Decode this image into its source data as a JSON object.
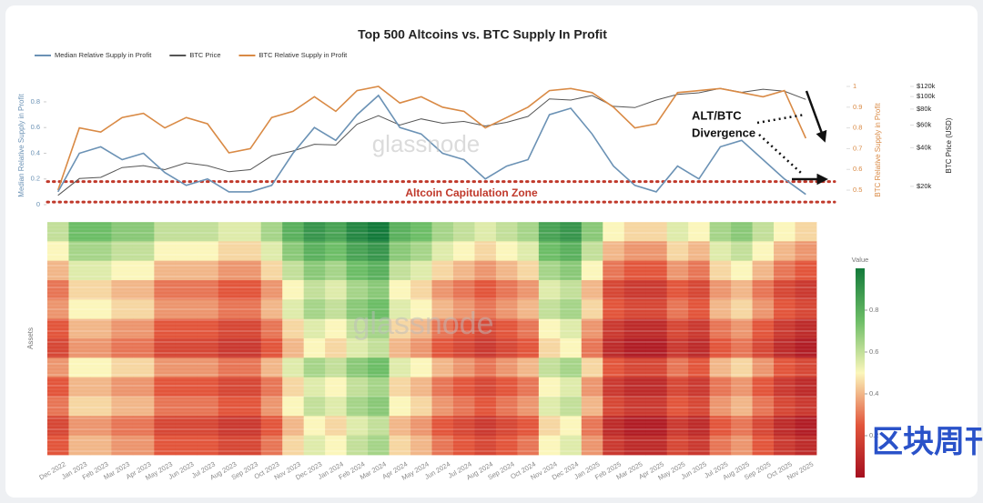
{
  "chart_data": [
    {
      "type": "line",
      "title": "Top 500 Altcoins vs. BTC Supply In Profit",
      "x": [
        "Dec 2022",
        "Jan 2023",
        "Feb 2023",
        "Mar 2023",
        "Apr 2023",
        "May 2023",
        "Jun 2023",
        "Jul 2023",
        "Aug 2023",
        "Sep 2023",
        "Oct 2023",
        "Nov 2023",
        "Dec 2023",
        "Jan 2024",
        "Feb 2024",
        "Mar 2024",
        "Apr 2024",
        "May 2024",
        "Jun 2024",
        "Jul 2024",
        "Aug 2024",
        "Sep 2024",
        "Oct 2024",
        "Nov 2024",
        "Dec 2024",
        "Jan 2025",
        "Feb 2025",
        "Mar 2025",
        "Apr 2025",
        "May 2025",
        "Jun 2025",
        "Jul 2025",
        "Aug 2025",
        "Sep 2025",
        "Oct 2025",
        "Nov 2025"
      ],
      "series": [
        {
          "name": "Median Relative Supply in Profit",
          "color": "#6b92b5",
          "values": [
            0.1,
            0.4,
            0.45,
            0.35,
            0.4,
            0.25,
            0.15,
            0.2,
            0.1,
            0.1,
            0.15,
            0.4,
            0.6,
            0.5,
            0.7,
            0.85,
            0.6,
            0.55,
            0.4,
            0.35,
            0.2,
            0.3,
            0.35,
            0.7,
            0.75,
            0.55,
            0.3,
            0.15,
            0.1,
            0.3,
            0.2,
            0.45,
            0.5,
            0.35,
            0.2,
            0.08
          ]
        },
        {
          "name": "BTC Price",
          "color": "#555555",
          "axis": "y3",
          "values": [
            17000,
            23000,
            23500,
            28000,
            29000,
            27000,
            30500,
            29000,
            26000,
            27000,
            34500,
            37700,
            42500,
            42000,
            61000,
            71000,
            60000,
            67000,
            62000,
            64000,
            59000,
            63000,
            70000,
            96000,
            94000,
            102000,
            84000,
            82000,
            94000,
            104000,
            107000,
            116000,
            108000,
            114000,
            110000,
            95000
          ]
        },
        {
          "name": "BTC Relative Supply in Profit",
          "color": "#d98a45",
          "axis": "y2",
          "values": [
            0.5,
            0.8,
            0.78,
            0.85,
            0.87,
            0.8,
            0.85,
            0.82,
            0.68,
            0.7,
            0.85,
            0.88,
            0.95,
            0.88,
            0.98,
            1.0,
            0.92,
            0.95,
            0.9,
            0.88,
            0.8,
            0.85,
            0.9,
            0.98,
            0.99,
            0.97,
            0.9,
            0.8,
            0.82,
            0.97,
            0.98,
            0.99,
            0.97,
            0.95,
            0.98,
            0.75
          ]
        }
      ],
      "y_label": "Median Relative Supply in Profit",
      "ylim": [
        0,
        0.92
      ],
      "yticks": [
        0,
        0.2,
        0.4,
        0.6,
        0.8
      ],
      "y2_label": "BTC Relative Supply in Profit",
      "y2lim": [
        0.43,
        1.0
      ],
      "y2ticks": [
        0.5,
        0.6,
        0.7,
        0.8,
        0.9,
        1
      ],
      "y3_label": "BTC Price (USD)",
      "y3_log": true,
      "y3lim": [
        14400,
        120000
      ],
      "y3ticks": [
        {
          "value": 20000,
          "label": "$20k"
        },
        {
          "value": 40000,
          "label": "$40k"
        },
        {
          "value": 60000,
          "label": "$60k"
        },
        {
          "value": 80000,
          "label": "$80k"
        },
        {
          "value": 100000,
          "label": "$100k"
        },
        {
          "value": 120000,
          "label": "$120k"
        }
      ],
      "zone": {
        "label": "Altcoin Capitulation Zone",
        "range": [
          0.02,
          0.18
        ],
        "color": "#c0392b"
      },
      "annotation_lines": [
        "ALT/BTC",
        "Divergence"
      ],
      "watermark": "glassnode"
    },
    {
      "type": "heatmap",
      "y_label": "Assets",
      "x": [
        "Dec 2022",
        "Jan 2023",
        "Feb 2023",
        "Mar 2023",
        "Apr 2023",
        "May 2023",
        "Jun 2023",
        "Jul 2023",
        "Aug 2023",
        "Sep 2023",
        "Oct 2023",
        "Nov 2023",
        "Dec 2023",
        "Jan 2024",
        "Feb 2024",
        "Mar 2024",
        "Apr 2024",
        "May 2024",
        "Jun 2024",
        "Jul 2024",
        "Aug 2024",
        "Sep 2024",
        "Oct 2024",
        "Nov 2024",
        "Dec 2024",
        "Jan 2025",
        "Feb 2025",
        "Mar 2025",
        "Apr 2025",
        "May 2025",
        "Jun 2025",
        "Jul 2025",
        "Aug 2025",
        "Sep 2025",
        "Oct 2025",
        "Nov 2025"
      ],
      "z": [
        [
          0.6,
          0.75,
          0.75,
          0.7,
          0.7,
          0.6,
          0.6,
          0.6,
          0.55,
          0.55,
          0.65,
          0.8,
          0.9,
          0.85,
          0.95,
          1.0,
          0.8,
          0.75,
          0.65,
          0.6,
          0.55,
          0.6,
          0.65,
          0.85,
          0.9,
          0.7,
          0.5,
          0.45,
          0.45,
          0.55,
          0.5,
          0.65,
          0.7,
          0.6,
          0.5,
          0.45
        ],
        [
          0.5,
          0.65,
          0.65,
          0.6,
          0.6,
          0.5,
          0.5,
          0.5,
          0.45,
          0.45,
          0.55,
          0.7,
          0.8,
          0.75,
          0.85,
          0.9,
          0.7,
          0.65,
          0.55,
          0.5,
          0.45,
          0.5,
          0.55,
          0.75,
          0.8,
          0.6,
          0.4,
          0.35,
          0.35,
          0.45,
          0.4,
          0.55,
          0.6,
          0.5,
          0.4,
          0.35
        ],
        [
          0.4,
          0.55,
          0.55,
          0.5,
          0.5,
          0.4,
          0.4,
          0.4,
          0.35,
          0.35,
          0.45,
          0.6,
          0.7,
          0.65,
          0.75,
          0.8,
          0.6,
          0.55,
          0.45,
          0.4,
          0.35,
          0.4,
          0.45,
          0.65,
          0.7,
          0.5,
          0.3,
          0.25,
          0.25,
          0.35,
          0.3,
          0.45,
          0.5,
          0.4,
          0.3,
          0.25
        ],
        [
          0.3,
          0.45,
          0.45,
          0.4,
          0.4,
          0.3,
          0.3,
          0.3,
          0.25,
          0.25,
          0.35,
          0.5,
          0.6,
          0.55,
          0.65,
          0.7,
          0.5,
          0.45,
          0.35,
          0.3,
          0.25,
          0.3,
          0.35,
          0.55,
          0.6,
          0.4,
          0.2,
          0.15,
          0.15,
          0.25,
          0.2,
          0.35,
          0.4,
          0.3,
          0.2,
          0.15
        ],
        [
          0.35,
          0.5,
          0.5,
          0.45,
          0.45,
          0.35,
          0.35,
          0.35,
          0.3,
          0.3,
          0.4,
          0.55,
          0.65,
          0.6,
          0.7,
          0.75,
          0.55,
          0.5,
          0.4,
          0.35,
          0.3,
          0.35,
          0.4,
          0.6,
          0.65,
          0.45,
          0.25,
          0.2,
          0.2,
          0.3,
          0.25,
          0.4,
          0.45,
          0.35,
          0.25,
          0.2
        ],
        [
          0.25,
          0.4,
          0.4,
          0.35,
          0.35,
          0.25,
          0.25,
          0.25,
          0.2,
          0.2,
          0.3,
          0.45,
          0.55,
          0.5,
          0.6,
          0.65,
          0.45,
          0.4,
          0.3,
          0.25,
          0.2,
          0.25,
          0.3,
          0.5,
          0.55,
          0.35,
          0.15,
          0.1,
          0.1,
          0.2,
          0.15,
          0.3,
          0.35,
          0.25,
          0.15,
          0.1
        ],
        [
          0.2,
          0.35,
          0.35,
          0.3,
          0.3,
          0.2,
          0.2,
          0.2,
          0.15,
          0.15,
          0.25,
          0.4,
          0.5,
          0.45,
          0.55,
          0.6,
          0.4,
          0.35,
          0.25,
          0.2,
          0.15,
          0.2,
          0.25,
          0.45,
          0.5,
          0.3,
          0.1,
          0.05,
          0.05,
          0.15,
          0.1,
          0.25,
          0.3,
          0.2,
          0.1,
          0.05
        ],
        [
          0.35,
          0.5,
          0.5,
          0.45,
          0.45,
          0.35,
          0.35,
          0.35,
          0.3,
          0.3,
          0.4,
          0.55,
          0.65,
          0.6,
          0.7,
          0.75,
          0.55,
          0.5,
          0.4,
          0.35,
          0.3,
          0.35,
          0.4,
          0.6,
          0.65,
          0.45,
          0.25,
          0.2,
          0.2,
          0.3,
          0.25,
          0.4,
          0.45,
          0.35,
          0.25,
          0.2
        ],
        [
          0.25,
          0.4,
          0.4,
          0.35,
          0.35,
          0.25,
          0.25,
          0.25,
          0.2,
          0.2,
          0.3,
          0.45,
          0.55,
          0.5,
          0.6,
          0.65,
          0.45,
          0.4,
          0.3,
          0.25,
          0.2,
          0.25,
          0.3,
          0.5,
          0.55,
          0.35,
          0.15,
          0.1,
          0.1,
          0.2,
          0.15,
          0.3,
          0.35,
          0.25,
          0.15,
          0.1
        ],
        [
          0.3,
          0.45,
          0.45,
          0.4,
          0.4,
          0.3,
          0.3,
          0.3,
          0.25,
          0.25,
          0.35,
          0.5,
          0.6,
          0.55,
          0.65,
          0.7,
          0.5,
          0.45,
          0.35,
          0.3,
          0.25,
          0.3,
          0.35,
          0.55,
          0.6,
          0.4,
          0.2,
          0.15,
          0.15,
          0.25,
          0.2,
          0.35,
          0.4,
          0.3,
          0.2,
          0.15
        ],
        [
          0.2,
          0.35,
          0.35,
          0.3,
          0.3,
          0.2,
          0.2,
          0.2,
          0.15,
          0.15,
          0.25,
          0.4,
          0.5,
          0.45,
          0.55,
          0.6,
          0.4,
          0.35,
          0.25,
          0.2,
          0.15,
          0.2,
          0.25,
          0.45,
          0.5,
          0.3,
          0.1,
          0.05,
          0.05,
          0.15,
          0.1,
          0.25,
          0.3,
          0.2,
          0.1,
          0.05
        ],
        [
          0.25,
          0.4,
          0.4,
          0.35,
          0.35,
          0.25,
          0.25,
          0.25,
          0.2,
          0.2,
          0.3,
          0.45,
          0.55,
          0.5,
          0.6,
          0.65,
          0.45,
          0.4,
          0.3,
          0.25,
          0.2,
          0.25,
          0.3,
          0.5,
          0.55,
          0.35,
          0.15,
          0.1,
          0.1,
          0.2,
          0.15,
          0.3,
          0.35,
          0.25,
          0.15,
          0.1
        ]
      ],
      "colorbar": {
        "title": "Value",
        "clim": [
          0,
          1
        ],
        "ticks": [
          0.2,
          0.4,
          0.6,
          0.8
        ]
      },
      "watermark": "glassnode"
    }
  ],
  "overlay_logo": "区块周刊"
}
